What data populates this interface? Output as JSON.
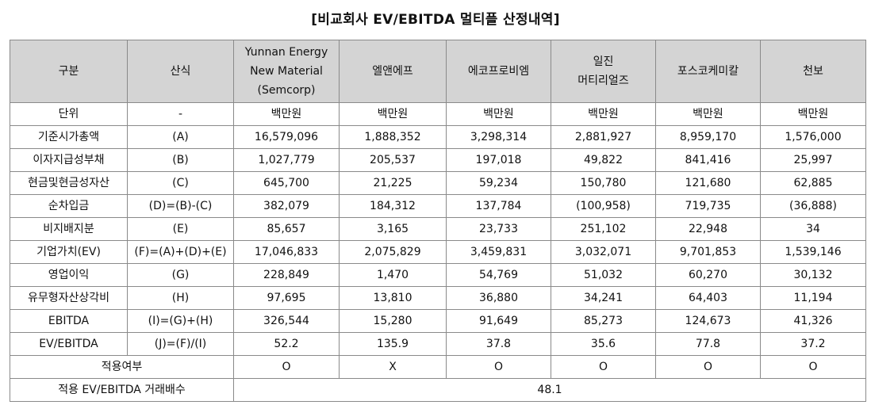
{
  "title": "[비교회사 EV/EBITDA 멀티플 산정내역]",
  "header": {
    "col_label": "구분",
    "col_formula": "산식",
    "companies": [
      {
        "line1": "Yunnan Energy",
        "line2": "New Material",
        "line3": "(Semcorp)"
      },
      {
        "line1": "엘앤에프",
        "line2": "",
        "line3": ""
      },
      {
        "line1": "에코프로비엠",
        "line2": "",
        "line3": ""
      },
      {
        "line1": "일진",
        "line2": "머티리얼즈",
        "line3": ""
      },
      {
        "line1": "포스코케미칼",
        "line2": "",
        "line3": ""
      },
      {
        "line1": "천보",
        "line2": "",
        "line3": ""
      }
    ]
  },
  "rows": [
    {
      "label": "단위",
      "formula": "-",
      "values": [
        "백만원",
        "백만원",
        "백만원",
        "백만원",
        "백만원",
        "백만원"
      ]
    },
    {
      "label": "기준시가총액",
      "formula": "(A)",
      "values": [
        "16,579,096",
        "1,888,352",
        "3,298,314",
        "2,881,927",
        "8,959,170",
        "1,576,000"
      ]
    },
    {
      "label": "이자지급성부채",
      "formula": "(B)",
      "values": [
        "1,027,779",
        "205,537",
        "197,018",
        "49,822",
        "841,416",
        "25,997"
      ]
    },
    {
      "label": "현금및현금성자산",
      "formula": "(C)",
      "values": [
        "645,700",
        "21,225",
        "59,234",
        "150,780",
        "121,680",
        "62,885"
      ]
    },
    {
      "label": "순차입금",
      "formula": "(D)=(B)-(C)",
      "values": [
        "382,079",
        "184,312",
        "137,784",
        "(100,958)",
        "719,735",
        "(36,888)"
      ]
    },
    {
      "label": "비지배지분",
      "formula": "(E)",
      "values": [
        "85,657",
        "3,165",
        "23,733",
        "251,102",
        "22,948",
        "34"
      ]
    },
    {
      "label": "기업가치(EV)",
      "formula": "(F)=(A)+(D)+(E)",
      "values": [
        "17,046,833",
        "2,075,829",
        "3,459,831",
        "3,032,071",
        "9,701,853",
        "1,539,146"
      ]
    },
    {
      "label": "영업이익",
      "formula": "(G)",
      "values": [
        "228,849",
        "1,470",
        "54,769",
        "51,032",
        "60,270",
        "30,132"
      ]
    },
    {
      "label": "유무형자산상각비",
      "formula": "(H)",
      "values": [
        "97,695",
        "13,810",
        "36,880",
        "34,241",
        "64,403",
        "11,194"
      ]
    },
    {
      "label": "EBITDA",
      "formula": "(I)=(G)+(H)",
      "values": [
        "326,544",
        "15,280",
        "91,649",
        "85,273",
        "124,673",
        "41,326"
      ]
    },
    {
      "label": "EV/EBITDA",
      "formula": "(J)=(F)/(I)",
      "values": [
        "52.2",
        "135.9",
        "37.8",
        "35.6",
        "77.8",
        "37.2"
      ]
    }
  ],
  "applied_row": {
    "label": "적용여부",
    "values": [
      "O",
      "X",
      "O",
      "O",
      "O",
      "O"
    ]
  },
  "final_row": {
    "label": "적용 EV/EBITDA 거래배수",
    "value": "48.1"
  }
}
